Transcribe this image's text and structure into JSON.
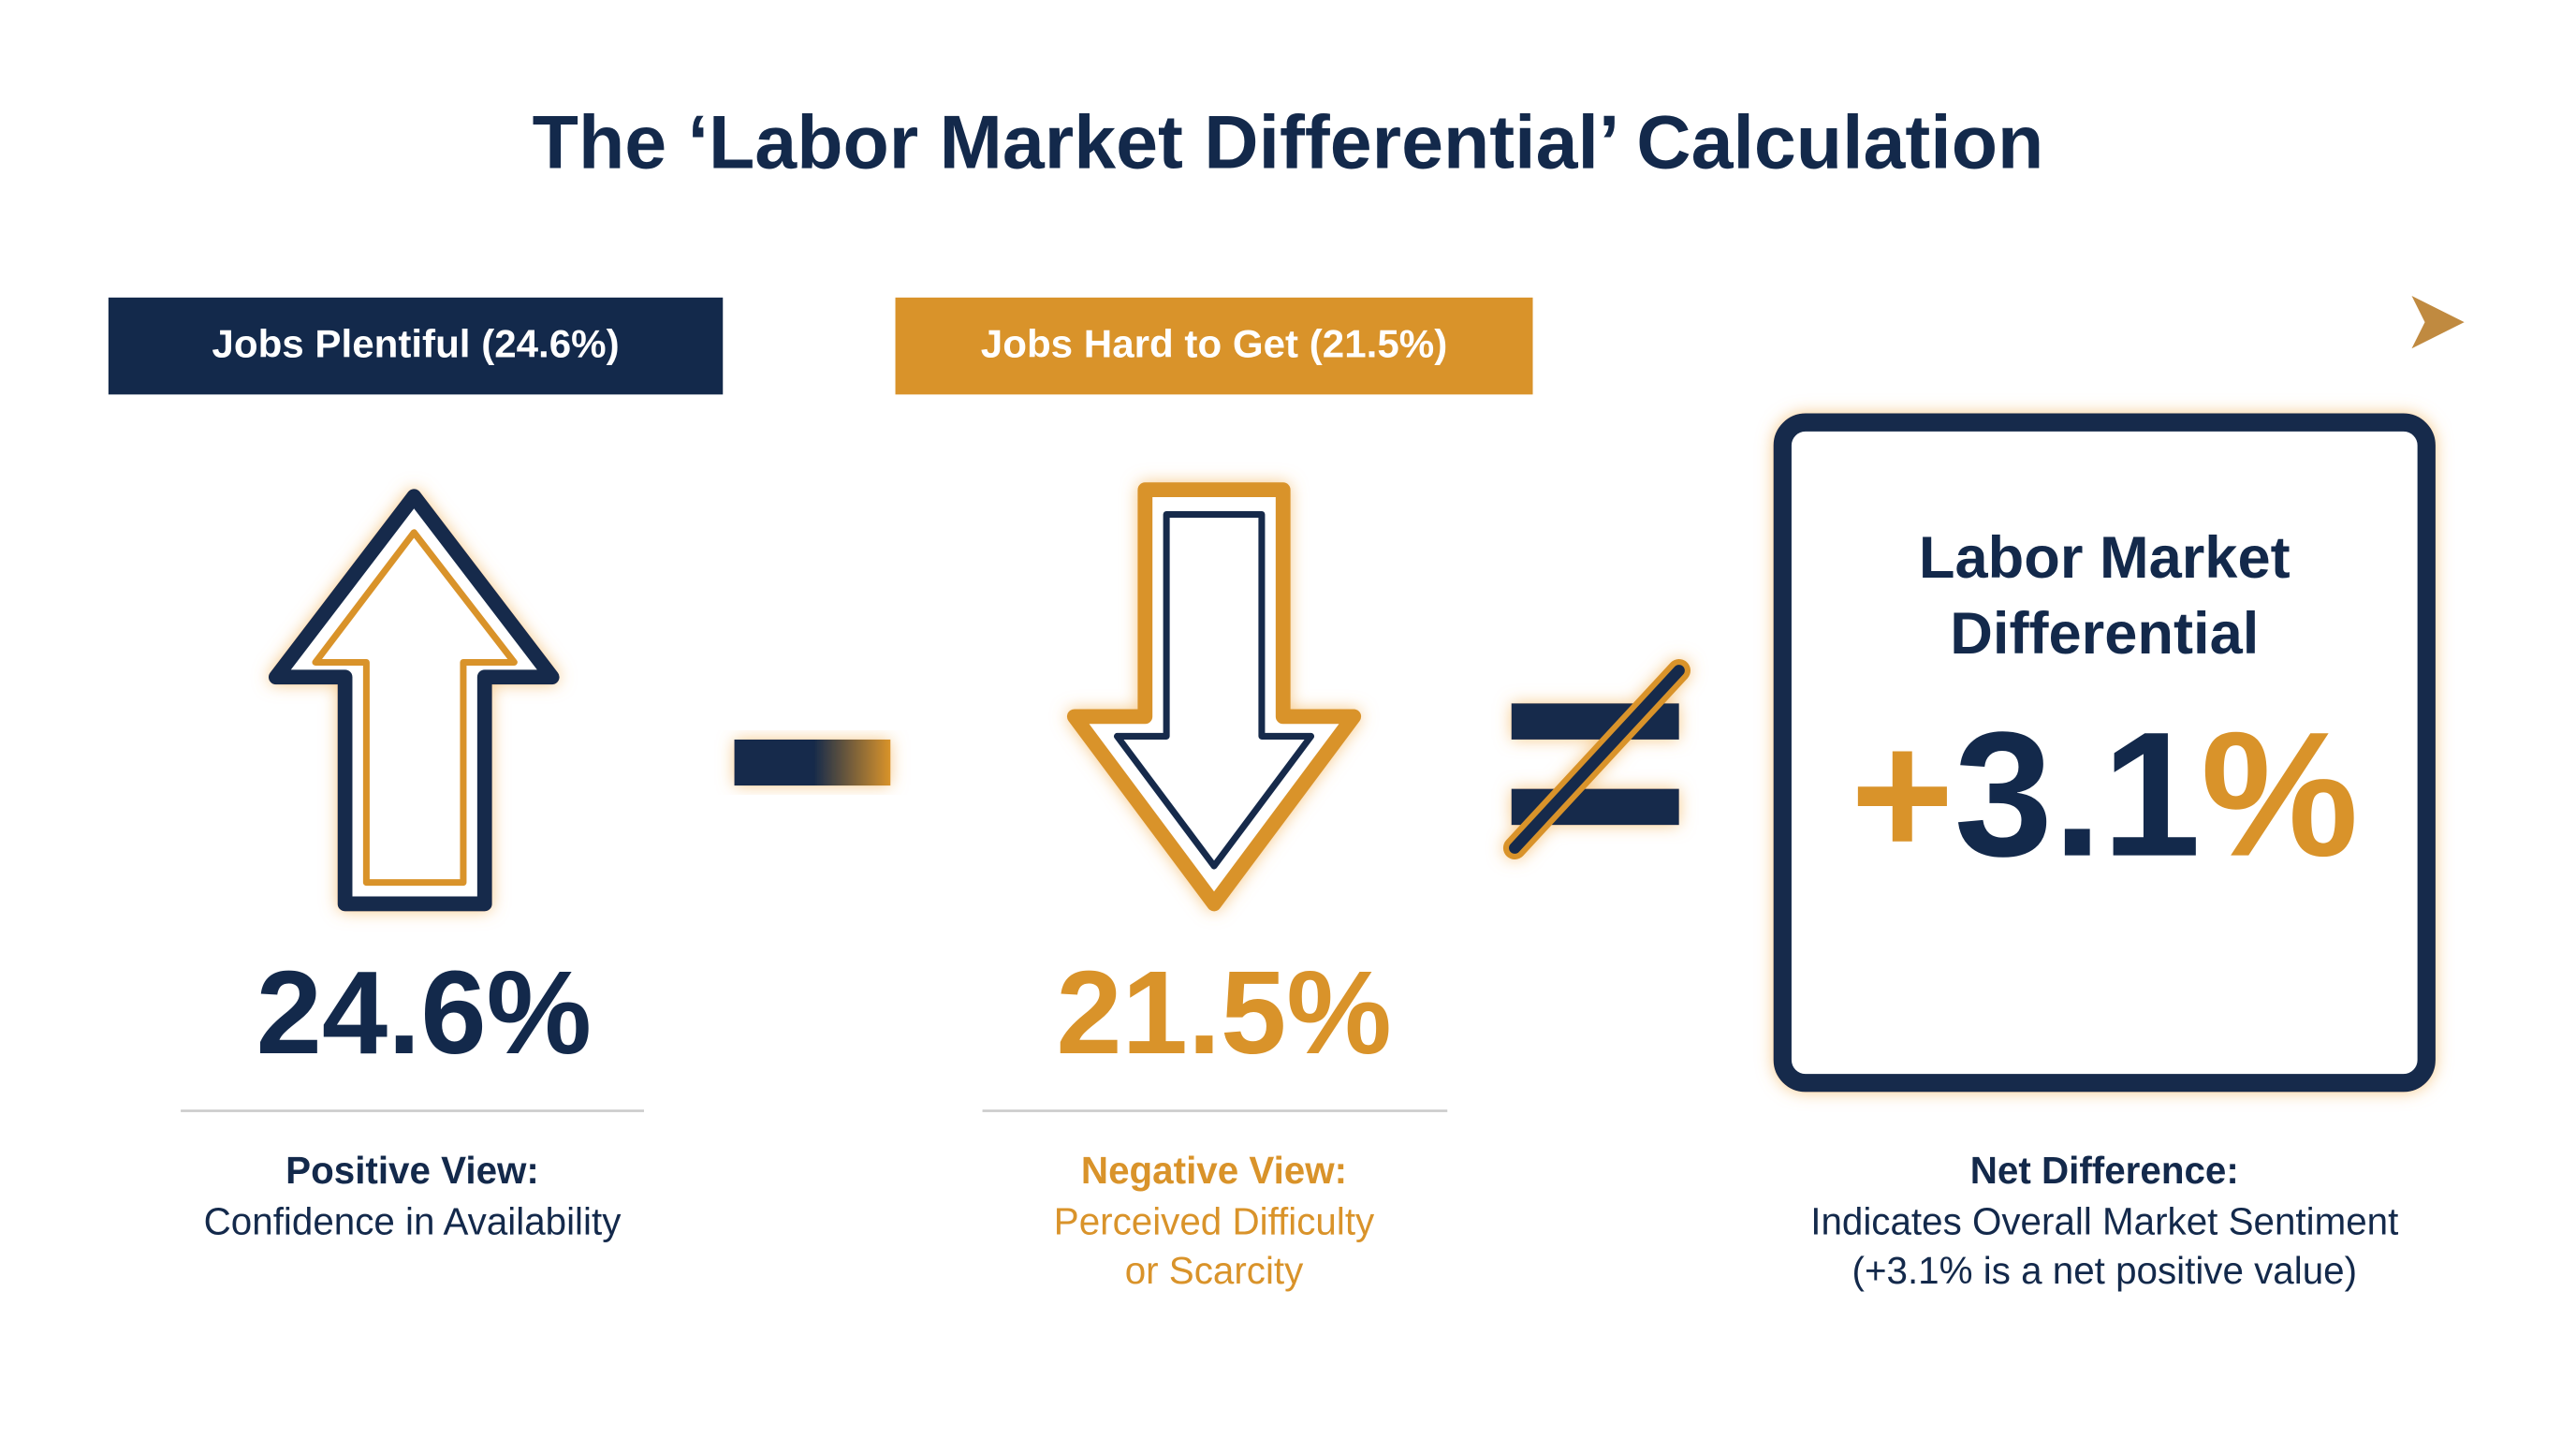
{
  "title": "The ‘Labor Market Differential’ Calculation",
  "timeline": {
    "labels": [
      "Jobs Plentiful (24.6%)",
      "Jobs Hard to Get (21.5%)"
    ]
  },
  "positive": {
    "value": "24.6%",
    "heading": "Positive View:",
    "lines": [
      "Confidence in Availability"
    ]
  },
  "negative": {
    "value": "21.5%",
    "heading": "Negative View:",
    "lines": [
      "Perceived Difficulty",
      "or Scarcity"
    ]
  },
  "result": {
    "box_title": [
      "Labor Market",
      "Differential"
    ],
    "value_parts": [
      "+",
      "3.1",
      "%"
    ],
    "heading": "Net Difference:",
    "lines": [
      "Indicates Overall Market Sentiment",
      "(+3.1% is a net positive value)"
    ]
  }
}
